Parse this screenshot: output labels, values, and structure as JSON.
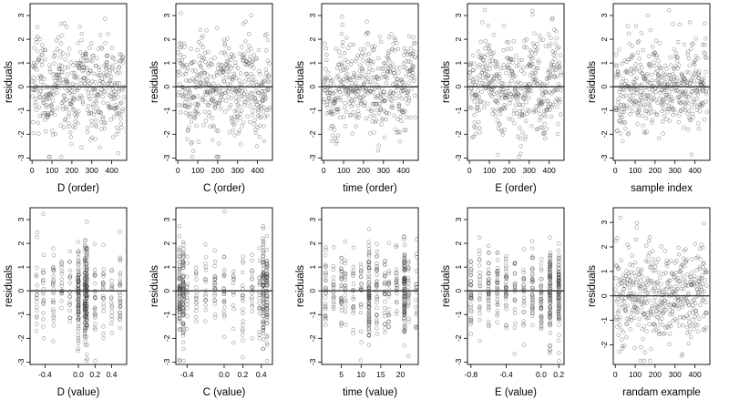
{
  "chart_data": [
    {
      "type": "scatter",
      "xlabel": "D (order)",
      "ylabel": "residuals",
      "xlim": [
        -10,
        475
      ],
      "ylim": [
        -3.1,
        3.5
      ],
      "xticks": [
        0,
        100,
        200,
        300,
        400
      ],
      "xtick_labels": [
        "0",
        "100",
        "200",
        "300",
        "400"
      ],
      "yticks": [
        -3,
        -2,
        -1,
        0,
        1,
        2,
        3
      ],
      "ytick_labels": [
        "-3",
        "-2",
        "-1",
        "0",
        "1",
        "2",
        "3"
      ],
      "hline": 0,
      "grid": false,
      "n_points": 460,
      "x_range": [
        1,
        460
      ],
      "pattern": "order"
    },
    {
      "type": "scatter",
      "xlabel": "C (order)",
      "ylabel": "residuals",
      "xlim": [
        -10,
        475
      ],
      "ylim": [
        -3.1,
        3.5
      ],
      "xticks": [
        0,
        100,
        200,
        300,
        400
      ],
      "xtick_labels": [
        "0",
        "100",
        "200",
        "300",
        "400"
      ],
      "yticks": [
        -3,
        -2,
        -1,
        0,
        1,
        2,
        3
      ],
      "ytick_labels": [
        "-3",
        "-2",
        "-1",
        "0",
        "1",
        "2",
        "3"
      ],
      "hline": 0,
      "grid": false,
      "n_points": 460,
      "x_range": [
        1,
        460
      ],
      "pattern": "order"
    },
    {
      "type": "scatter",
      "xlabel": "time (order)",
      "ylabel": "residuals",
      "xlim": [
        -10,
        475
      ],
      "ylim": [
        -3.1,
        3.5
      ],
      "xticks": [
        0,
        100,
        200,
        300,
        400
      ],
      "xtick_labels": [
        "0",
        "100",
        "200",
        "300",
        "400"
      ],
      "yticks": [
        -3,
        -2,
        -1,
        0,
        1,
        2,
        3
      ],
      "ytick_labels": [
        "-3",
        "-2",
        "-1",
        "0",
        "1",
        "2",
        "3"
      ],
      "hline": 0,
      "grid": false,
      "n_points": 460,
      "x_range": [
        1,
        460
      ],
      "pattern": "order"
    },
    {
      "type": "scatter",
      "xlabel": "E (order)",
      "ylabel": "residuals",
      "xlim": [
        -10,
        475
      ],
      "ylim": [
        -3.1,
        3.5
      ],
      "xticks": [
        0,
        100,
        200,
        300,
        400
      ],
      "xtick_labels": [
        "0",
        "100",
        "200",
        "300",
        "400"
      ],
      "yticks": [
        -3,
        -2,
        -1,
        0,
        1,
        2,
        3
      ],
      "ytick_labels": [
        "-3",
        "-2",
        "-1",
        "0",
        "1",
        "2",
        "3"
      ],
      "hline": 0,
      "grid": false,
      "n_points": 460,
      "x_range": [
        1,
        460
      ],
      "pattern": "order"
    },
    {
      "type": "scatter",
      "xlabel": "sample index",
      "ylabel": "residuals",
      "xlim": [
        -10,
        475
      ],
      "ylim": [
        -3.1,
        3.5
      ],
      "xticks": [
        0,
        100,
        200,
        300,
        400
      ],
      "xtick_labels": [
        "0",
        "100",
        "200",
        "300",
        "400"
      ],
      "yticks": [
        -3,
        -2,
        -1,
        0,
        1,
        2,
        3
      ],
      "ytick_labels": [
        "-3",
        "-2",
        "-1",
        "0",
        "1",
        "2",
        "3"
      ],
      "hline": 0,
      "grid": false,
      "n_points": 460,
      "x_range": [
        1,
        460
      ],
      "pattern": "order"
    },
    {
      "type": "scatter",
      "xlabel": "D (value)",
      "ylabel": "residuals",
      "xlim": [
        -0.58,
        0.58
      ],
      "ylim": [
        -3.1,
        3.5
      ],
      "xticks": [
        -0.4,
        0.0,
        0.2,
        0.4
      ],
      "xtick_labels": [
        "-0.4",
        "0.0",
        "0.2",
        "0.4"
      ],
      "yticks": [
        -3,
        -2,
        -1,
        0,
        1,
        2,
        3
      ],
      "ytick_labels": [
        "-3",
        "-2",
        "-1",
        "0",
        "1",
        "2",
        "3"
      ],
      "hline": 0,
      "grid": false,
      "n_points": 460,
      "x_range": [
        -0.52,
        0.52
      ],
      "pattern": "columns",
      "x_levels": [
        -0.5,
        -0.42,
        -0.3,
        -0.2,
        -0.1,
        0.0,
        0.08,
        0.1,
        0.2,
        0.3,
        0.4,
        0.5
      ]
    },
    {
      "type": "scatter",
      "xlabel": "C (value)",
      "ylabel": "residuals",
      "xlim": [
        -0.52,
        0.52
      ],
      "ylim": [
        -3.1,
        3.5
      ],
      "xticks": [
        -0.4,
        0.0,
        0.2,
        0.4
      ],
      "xtick_labels": [
        "-0.4",
        "0.0",
        "0.2",
        "0.4"
      ],
      "yticks": [
        -3,
        -2,
        -1,
        0,
        1,
        2,
        3
      ],
      "ytick_labels": [
        "-3",
        "-2",
        "-1",
        "0",
        "1",
        "2",
        "3"
      ],
      "hline": 0,
      "grid": false,
      "n_points": 460,
      "x_range": [
        -0.48,
        0.48
      ],
      "pattern": "columns",
      "x_levels": [
        -0.48,
        -0.44,
        -0.4,
        -0.3,
        -0.2,
        -0.1,
        0.0,
        0.1,
        0.2,
        0.3,
        0.38,
        0.42,
        0.46
      ]
    },
    {
      "type": "scatter",
      "xlabel": "time (value)",
      "ylabel": "residuals",
      "xlim": [
        0,
        24.5
      ],
      "ylim": [
        -3.1,
        3.5
      ],
      "xticks": [
        5,
        10,
        15,
        20
      ],
      "xtick_labels": [
        "5",
        "10",
        "15",
        "20"
      ],
      "yticks": [
        -3,
        -2,
        -1,
        0,
        1,
        2,
        3
      ],
      "ytick_labels": [
        "-3",
        "-2",
        "-1",
        "0",
        "1",
        "2",
        "3"
      ],
      "hline": 0,
      "grid": false,
      "n_points": 460,
      "x_range": [
        1,
        24
      ],
      "pattern": "columns",
      "x_levels": [
        1,
        3,
        5,
        6,
        8,
        10,
        12,
        14,
        16,
        17,
        19,
        21,
        22,
        24
      ]
    },
    {
      "type": "scatter",
      "xlabel": "E (value)",
      "ylabel": "residuals",
      "xlim": [
        -0.84,
        0.26
      ],
      "ylim": [
        -3.1,
        3.5
      ],
      "xticks": [
        -0.8,
        -0.4,
        0.0,
        0.2
      ],
      "xtick_labels": [
        "-0.8",
        "-0.4",
        "0.0",
        "0.2"
      ],
      "yticks": [
        -3,
        -2,
        -1,
        0,
        1,
        2,
        3
      ],
      "ytick_labels": [
        "-3",
        "-2",
        "-1",
        "0",
        "1",
        "2",
        "3"
      ],
      "hline": 0,
      "grid": false,
      "n_points": 460,
      "x_range": [
        -0.8,
        0.2
      ],
      "pattern": "columns",
      "x_levels": [
        -0.8,
        -0.7,
        -0.6,
        -0.5,
        -0.4,
        -0.3,
        -0.2,
        -0.1,
        0.0,
        0.1,
        0.2
      ]
    },
    {
      "type": "scatter",
      "xlabel": "randam example",
      "ylabel": "residuals",
      "xlim": [
        -10,
        475
      ],
      "ylim": [
        -2.8,
        3.6
      ],
      "xticks": [
        0,
        100,
        200,
        300,
        400
      ],
      "xtick_labels": [
        "0",
        "100",
        "200",
        "300",
        "400"
      ],
      "yticks": [
        -2,
        -1,
        0,
        1,
        2,
        3
      ],
      "ytick_labels": [
        "-2",
        "-1",
        "0",
        "1",
        "2",
        "3"
      ],
      "hline": 0,
      "grid": false,
      "n_points": 460,
      "x_range": [
        1,
        460
      ],
      "pattern": "order"
    }
  ]
}
